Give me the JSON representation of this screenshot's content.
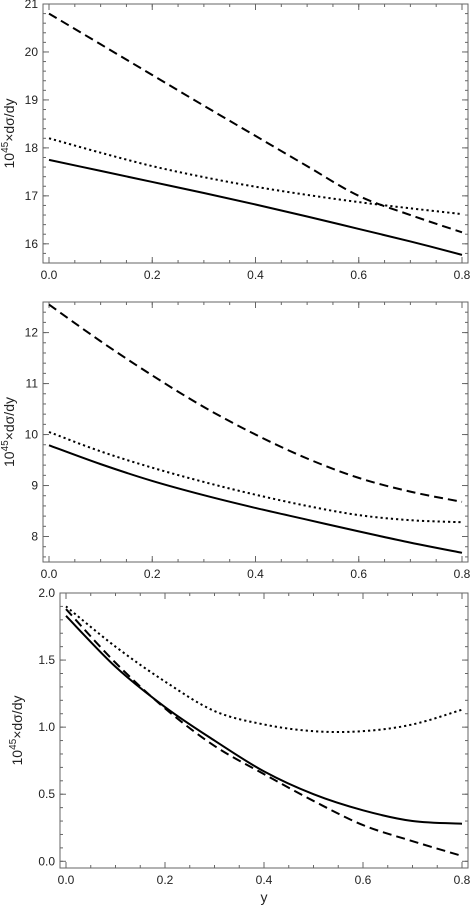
{
  "chart_data": [
    {
      "type": "line",
      "ylabel_base": "10",
      "ylabel_exp": "45",
      "ylabel_rest": "×dσ/dy",
      "xlabel": "",
      "xlim": [
        0,
        0.8
      ],
      "ylim": [
        15.6,
        21.0
      ],
      "x_ticks": [
        "0.0",
        "0.2",
        "0.4",
        "0.6",
        "0.8"
      ],
      "x_tick_values": [
        0,
        0.2,
        0.4,
        0.6,
        0.8
      ],
      "y_ticks": [
        "16",
        "17",
        "18",
        "19",
        "20",
        "21"
      ],
      "y_tick_values": [
        16,
        17,
        18,
        19,
        20,
        21
      ],
      "x": [
        0,
        0.1,
        0.2,
        0.3,
        0.4,
        0.5,
        0.6,
        0.7,
        0.8
      ],
      "series": [
        {
          "style": "solid",
          "values": [
            17.75,
            17.52,
            17.29,
            17.06,
            16.82,
            16.57,
            16.31,
            16.05,
            15.77
          ]
        },
        {
          "style": "dashed",
          "values": [
            20.8,
            20.16,
            19.52,
            18.88,
            18.25,
            17.62,
            17.0,
            16.6,
            16.24
          ]
        },
        {
          "style": "dotted",
          "values": [
            18.2,
            17.9,
            17.62,
            17.39,
            17.19,
            17.02,
            16.87,
            16.74,
            16.62
          ]
        }
      ]
    },
    {
      "type": "line",
      "ylabel_base": "10",
      "ylabel_exp": "45",
      "ylabel_rest": "×dσ/dy",
      "xlabel": "",
      "xlim": [
        0,
        0.8
      ],
      "ylim": [
        7.5,
        12.6
      ],
      "x_ticks": [
        "0.0",
        "0.2",
        "0.4",
        "0.6",
        "0.8"
      ],
      "x_tick_values": [
        0,
        0.2,
        0.4,
        0.6,
        0.8
      ],
      "y_ticks": [
        "8",
        "9",
        "10",
        "11",
        "12"
      ],
      "y_tick_values": [
        8,
        9,
        10,
        11,
        12
      ],
      "x": [
        0,
        0.1,
        0.2,
        0.3,
        0.4,
        0.5,
        0.6,
        0.7,
        0.8
      ],
      "series": [
        {
          "style": "solid",
          "values": [
            9.79,
            9.42,
            9.09,
            8.81,
            8.56,
            8.33,
            8.1,
            7.88,
            7.68
          ]
        },
        {
          "style": "dashed",
          "values": [
            12.55,
            11.83,
            11.16,
            10.54,
            10.0,
            9.53,
            9.15,
            8.88,
            8.68
          ]
        },
        {
          "style": "dotted",
          "values": [
            10.05,
            9.67,
            9.35,
            9.07,
            8.82,
            8.6,
            8.42,
            8.32,
            8.28
          ]
        }
      ]
    },
    {
      "type": "line",
      "ylabel_base": "10",
      "ylabel_exp": "45",
      "ylabel_rest": "×dσ/dy",
      "xlabel": "y",
      "xlim": [
        0,
        0.8
      ],
      "ylim": [
        -0.05,
        2.0
      ],
      "x_ticks": [
        "0.0",
        "0.2",
        "0.4",
        "0.6",
        "0.8"
      ],
      "x_tick_values": [
        0,
        0.2,
        0.4,
        0.6,
        0.8
      ],
      "y_ticks": [
        "0.0",
        "0.5",
        "1.0",
        "1.5",
        "2.0"
      ],
      "y_tick_values": [
        0.0,
        0.5,
        1.0,
        1.5,
        2.0
      ],
      "x": [
        0,
        0.1,
        0.2,
        0.3,
        0.4,
        0.5,
        0.6,
        0.7,
        0.8
      ],
      "series": [
        {
          "style": "solid",
          "values": [
            1.83,
            1.45,
            1.15,
            0.9,
            0.67,
            0.5,
            0.38,
            0.3,
            0.28
          ]
        },
        {
          "style": "dashed",
          "values": [
            1.88,
            1.48,
            1.14,
            0.86,
            0.65,
            0.45,
            0.27,
            0.15,
            0.04
          ]
        },
        {
          "style": "dotted",
          "values": [
            1.9,
            1.6,
            1.34,
            1.12,
            1.02,
            0.97,
            0.97,
            1.02,
            1.13
          ]
        }
      ]
    }
  ]
}
